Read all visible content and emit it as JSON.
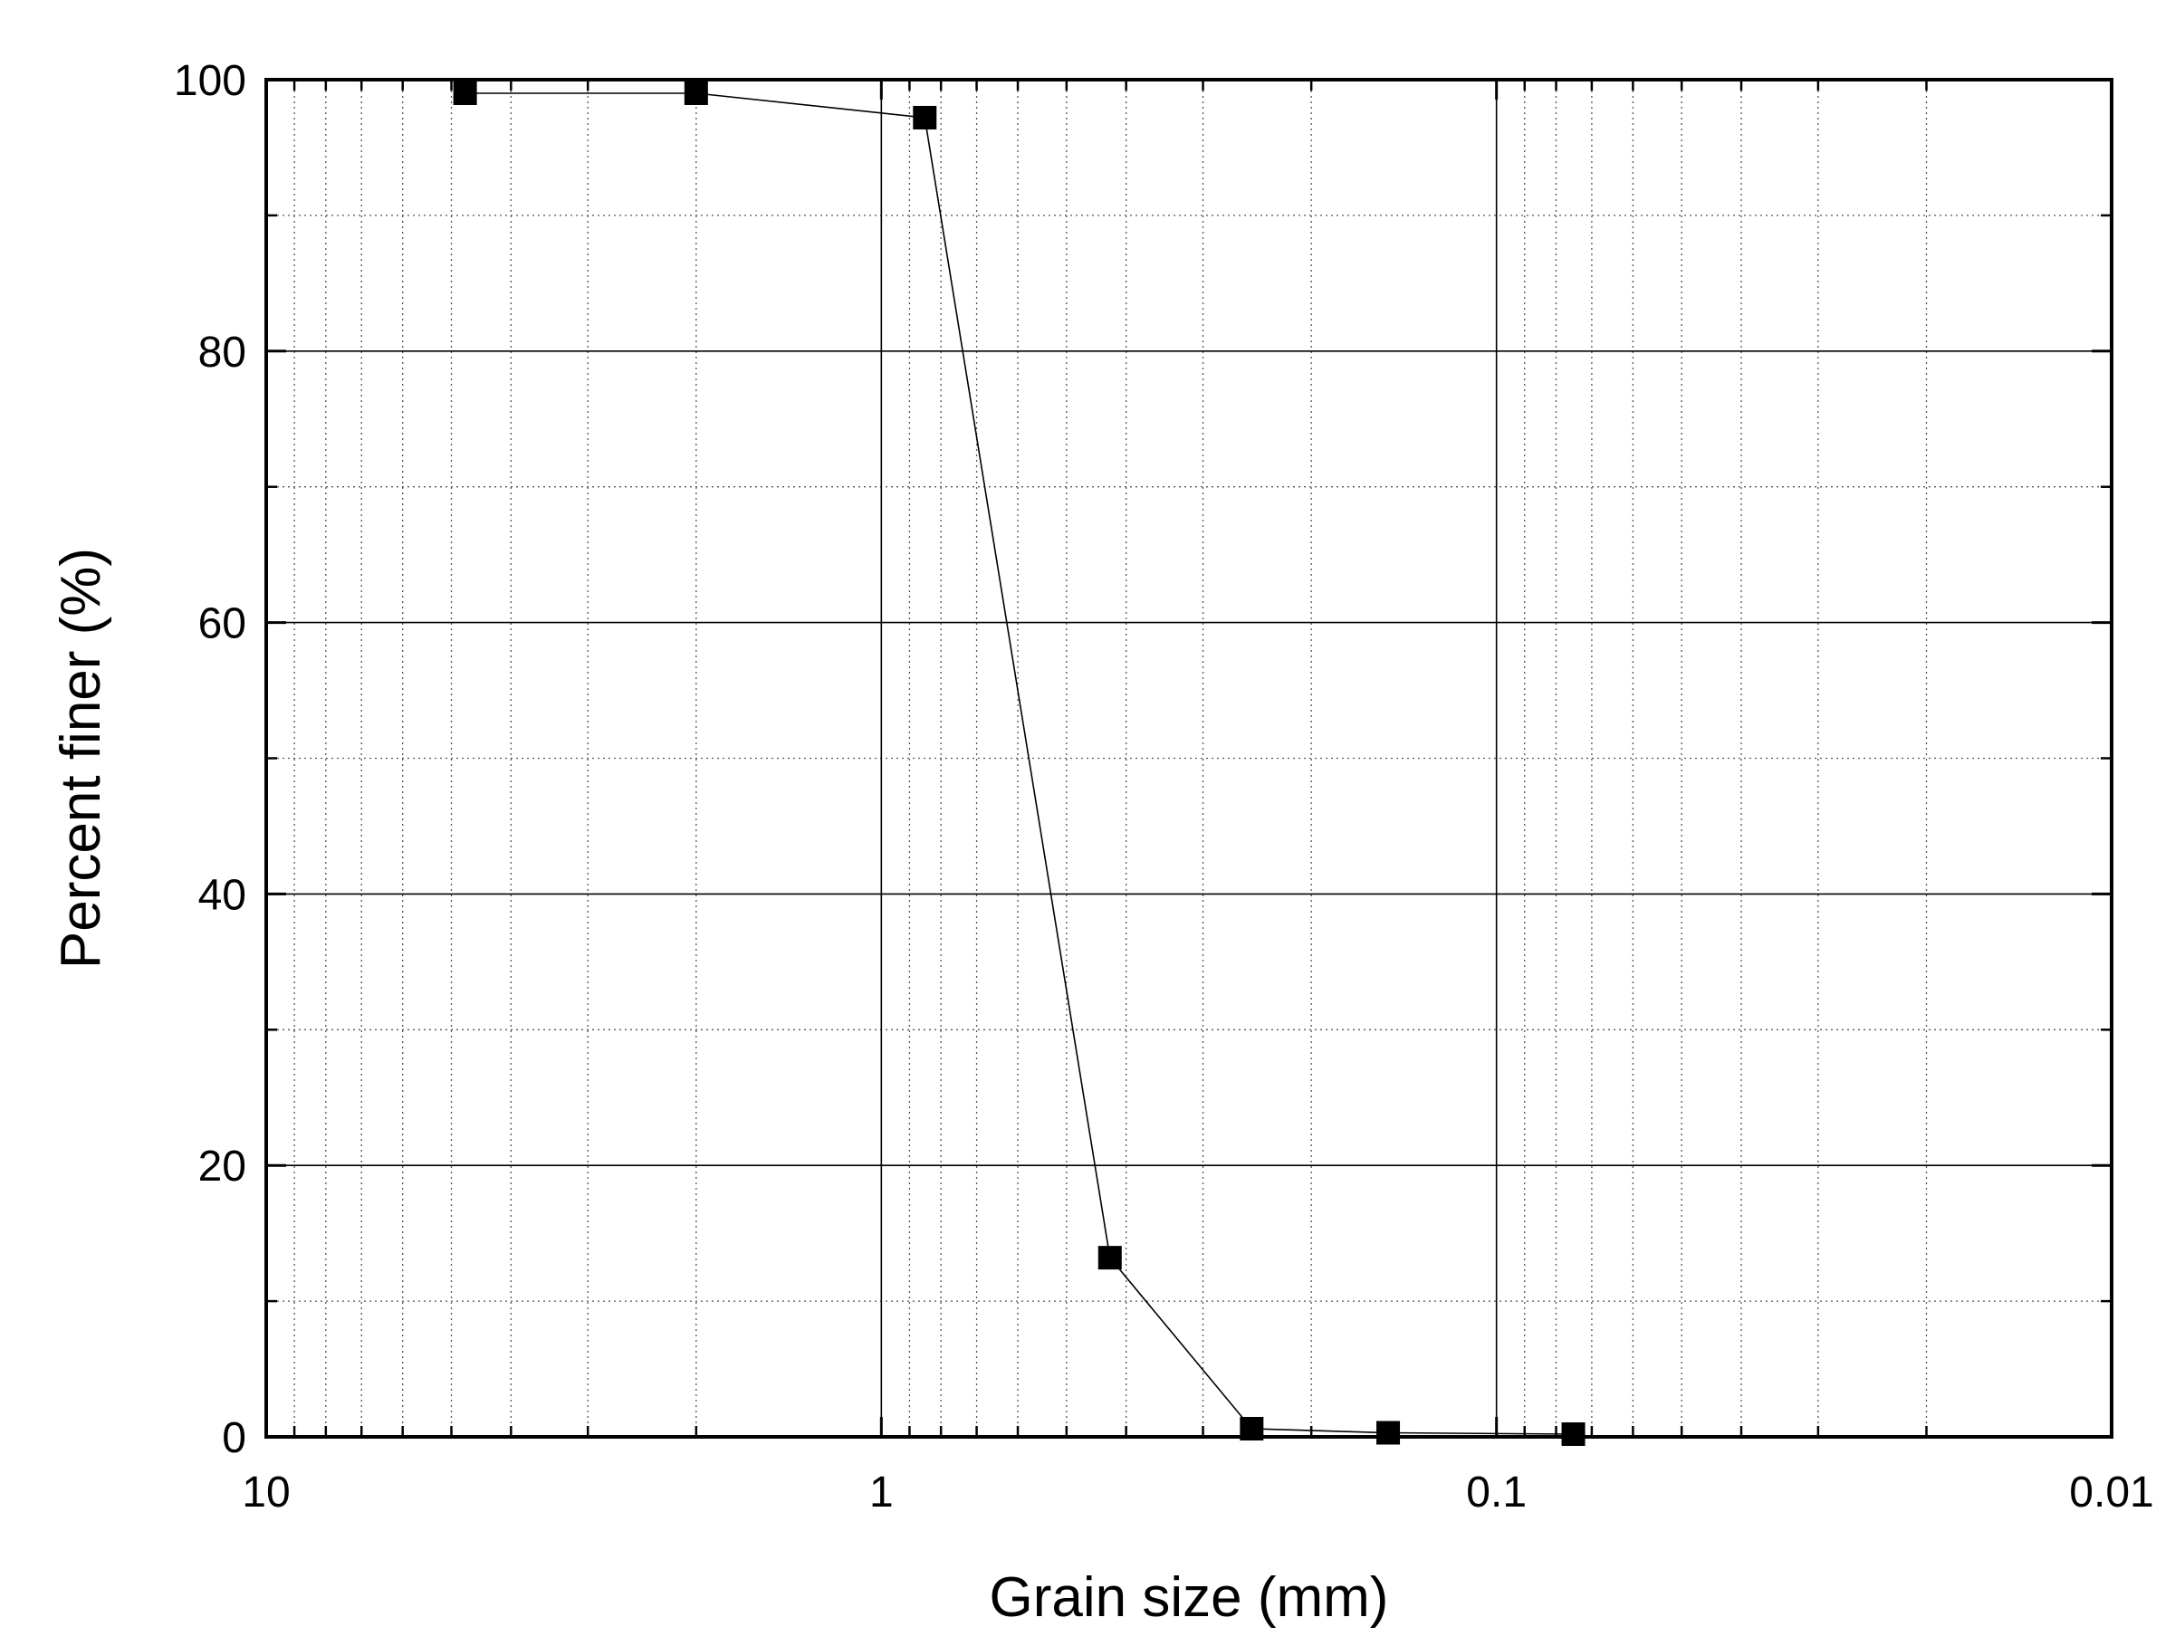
{
  "chart_data": {
    "type": "scatter",
    "title": "",
    "xlabel": "Grain size (mm)",
    "ylabel": "Percent finer (%)",
    "xscale": "log",
    "xaxis_reversed": true,
    "xlim": [
      10,
      0.01
    ],
    "ylim": [
      0,
      100
    ],
    "x_ticks": [
      10,
      1,
      0.1,
      0.01
    ],
    "x_tick_labels": [
      "10",
      "1",
      "0.1",
      "0.01"
    ],
    "y_ticks": [
      0,
      20,
      40,
      60,
      80,
      100
    ],
    "y_tick_labels": [
      "0",
      "20",
      "40",
      "60",
      "80",
      "100"
    ],
    "grid": "major solid, minor dotted",
    "series": [
      {
        "marker": "square",
        "line": "solid thin",
        "color": "#000000",
        "x": [
          4.75,
          2.0,
          0.85,
          0.425,
          0.25,
          0.15,
          0.075
        ],
        "y": [
          99.0,
          99.0,
          97.2,
          13.2,
          0.6,
          0.3,
          0.2
        ]
      }
    ]
  }
}
